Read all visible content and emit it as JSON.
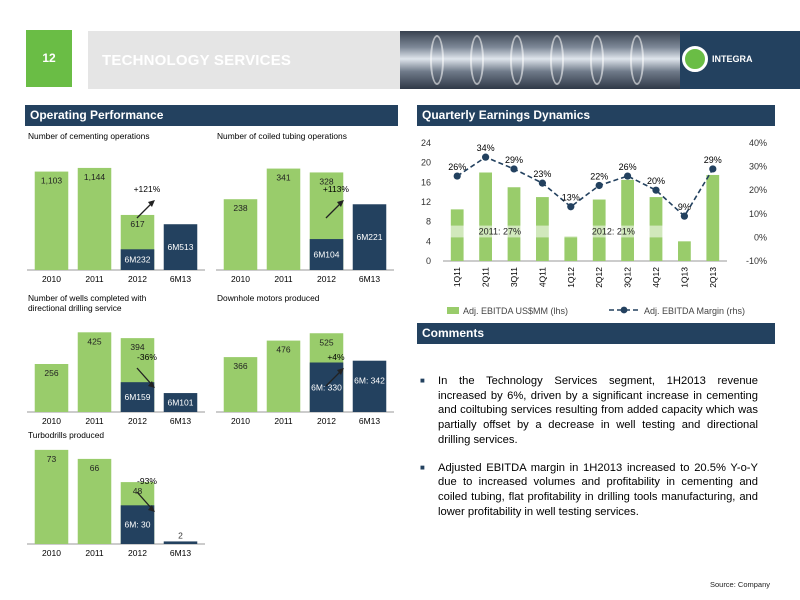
{
  "header": {
    "page_number": "12",
    "title": "TECHNOLOGY SERVICES",
    "logo_text": "INTEGRA"
  },
  "sections": {
    "operating": "Operating Performance",
    "quarterly": "Quarterly Earnings Dynamics",
    "comments": "Comments"
  },
  "colors": {
    "green": "#99cc6b",
    "navy": "#23415f",
    "accent_green": "#6abd45"
  },
  "chart_data": [
    {
      "type": "bar",
      "title": "Number of cementing operations",
      "categories": [
        "2010",
        "2011",
        "2012",
        "6M13"
      ],
      "values": [
        1103,
        1144,
        617,
        513
      ],
      "labels": [
        "1,103",
        "1,144",
        "617",
        "6M513"
      ],
      "inner": {
        "index": 2,
        "value": 232,
        "label": "6M232"
      },
      "annotation": "+121%",
      "ymax": 1300
    },
    {
      "type": "bar",
      "title": "Number of coiled tubing operations",
      "categories": [
        "2010",
        "2011",
        "2012",
        "6M13"
      ],
      "values": [
        238,
        341,
        328,
        221
      ],
      "labels": [
        "238",
        "341",
        "328",
        "6M221"
      ],
      "inner": {
        "index": 2,
        "value": 104,
        "label": "6M104"
      },
      "annotation": "+113%",
      "ymax": 390
    },
    {
      "type": "bar",
      "title": "Number of wells completed with directional drilling service",
      "categories": [
        "2010",
        "2011",
        "2012",
        "6M13"
      ],
      "values": [
        256,
        425,
        394,
        101
      ],
      "labels": [
        "256",
        "425",
        "394",
        "6M101"
      ],
      "inner": {
        "index": 2,
        "value": 159,
        "label": "6M159"
      },
      "annotation": "-36%",
      "ymax": 480
    },
    {
      "type": "bar",
      "title": "Downhole motors produced",
      "categories": [
        "2010",
        "2011",
        "2012",
        "6M13"
      ],
      "values": [
        366,
        476,
        525,
        342
      ],
      "labels": [
        "366",
        "476",
        "525",
        "6M: 342"
      ],
      "inner": {
        "index": 2,
        "value": 330,
        "label": "6M: 330"
      },
      "annotation": "+4%",
      "ymax": 600
    },
    {
      "type": "bar",
      "title": "Turbodrills produced",
      "categories": [
        "2010",
        "2011",
        "2012",
        "6M13"
      ],
      "values": [
        73,
        66,
        48,
        2
      ],
      "labels": [
        "73",
        "66",
        "48",
        "2"
      ],
      "inner": {
        "index": 2,
        "value": 30,
        "label": "6M: 30"
      },
      "annotation": "-93%",
      "ymax": 76
    },
    {
      "type": "bar+line",
      "title": "Quarterly Earnings Dynamics",
      "categories": [
        "1Q11",
        "2Q11",
        "3Q11",
        "4Q11",
        "1Q12",
        "2Q12",
        "3Q12",
        "4Q12",
        "1Q13",
        "2Q13"
      ],
      "series": [
        {
          "name": "Adj. EBITDA US$MM (lhs)",
          "values": [
            10.5,
            18,
            15,
            13,
            5,
            12.5,
            16.5,
            13,
            4,
            17.5
          ]
        },
        {
          "name": "Adj. EBITDA Margin (rhs)",
          "values": [
            26,
            34,
            29,
            23,
            13,
            22,
            26,
            20,
            9,
            29
          ],
          "labels": [
            "26%",
            "34%",
            "29%",
            "23%",
            "13%",
            "22%",
            "26%",
            "20%",
            "9%",
            "29%"
          ]
        }
      ],
      "ylim_left": [
        0,
        24
      ],
      "yticks_left": [
        "0",
        "4",
        "8",
        "12",
        "16",
        "20",
        "24"
      ],
      "ylim_right": [
        -10,
        40
      ],
      "yticks_right": [
        "-10%",
        "0%",
        "10%",
        "20%",
        "30%",
        "40%"
      ],
      "annotations": [
        "2011: 27%",
        "2012: 21%"
      ],
      "legend": "bottom"
    }
  ],
  "comments": [
    "In the Technology Services segment, 1H2013 revenue increased by 6%, driven by a significant increase in cementing and coiltubing services resulting from added capacity which was partially offset by a decrease in well testing and directional drilling services.",
    "Adjusted EBITDA margin in 1H2013 increased to 20.5% Y-o-Y due to increased volumes and profitability in cementing and coiled tubing, flat profitability in drilling tools manufacturing, and lower profitability in well testing services."
  ],
  "source": "Source: Company"
}
